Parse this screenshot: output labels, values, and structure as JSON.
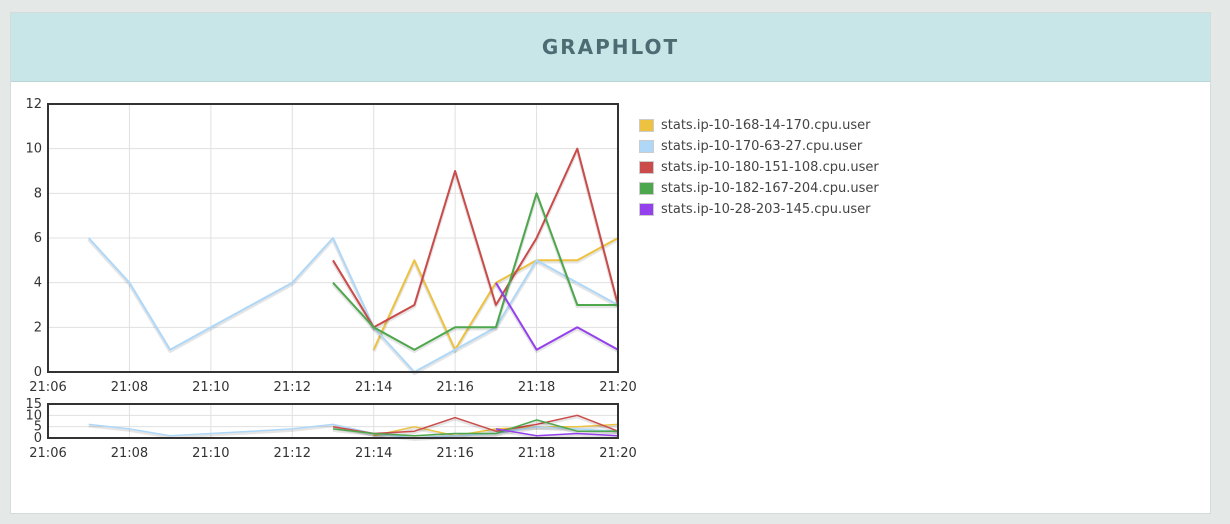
{
  "header": {
    "title": "GRAPHLOT"
  },
  "chart_data": {
    "type": "line",
    "x": [
      "21:07",
      "21:08",
      "21:09",
      "21:10",
      "21:11",
      "21:12",
      "21:13",
      "21:14",
      "21:15",
      "21:16",
      "21:17",
      "21:18",
      "21:19",
      "21:20"
    ],
    "xlim": [
      "21:06",
      "21:20"
    ],
    "xticks": [
      "21:06",
      "21:08",
      "21:10",
      "21:12",
      "21:14",
      "21:16",
      "21:18",
      "21:20"
    ],
    "ylim": [
      0,
      12
    ],
    "yticks": [
      "0",
      "2",
      "4",
      "6",
      "8",
      "10",
      "12"
    ],
    "overview_ylim": [
      0,
      15
    ],
    "overview_yticks": [
      "0",
      "5",
      "10",
      "15"
    ],
    "grid": true,
    "legend_position": "right",
    "series": [
      {
        "name": "stats.ip-10-168-14-170.cpu.user",
        "color": "#edc240",
        "values": [
          null,
          null,
          null,
          null,
          null,
          null,
          null,
          1,
          5,
          1,
          4,
          5,
          5,
          6
        ]
      },
      {
        "name": "stats.ip-10-170-63-27.cpu.user",
        "color": "#afd8f8",
        "values": [
          6,
          4,
          1,
          2,
          3,
          4,
          6,
          2,
          0,
          1,
          2,
          5,
          4,
          3
        ]
      },
      {
        "name": "stats.ip-10-180-151-108.cpu.user",
        "color": "#cb4b4b",
        "values": [
          null,
          null,
          null,
          null,
          null,
          null,
          5,
          2,
          3,
          9,
          3,
          6,
          10,
          3
        ]
      },
      {
        "name": "stats.ip-10-182-167-204.cpu.user",
        "color": "#4da74d",
        "values": [
          null,
          null,
          null,
          null,
          null,
          null,
          4,
          2,
          1,
          2,
          2,
          8,
          3,
          3
        ]
      },
      {
        "name": "stats.ip-10-28-203-145.cpu.user",
        "color": "#9440ed",
        "values": [
          null,
          null,
          null,
          null,
          null,
          null,
          null,
          null,
          null,
          null,
          4,
          1,
          2,
          1
        ]
      }
    ]
  }
}
